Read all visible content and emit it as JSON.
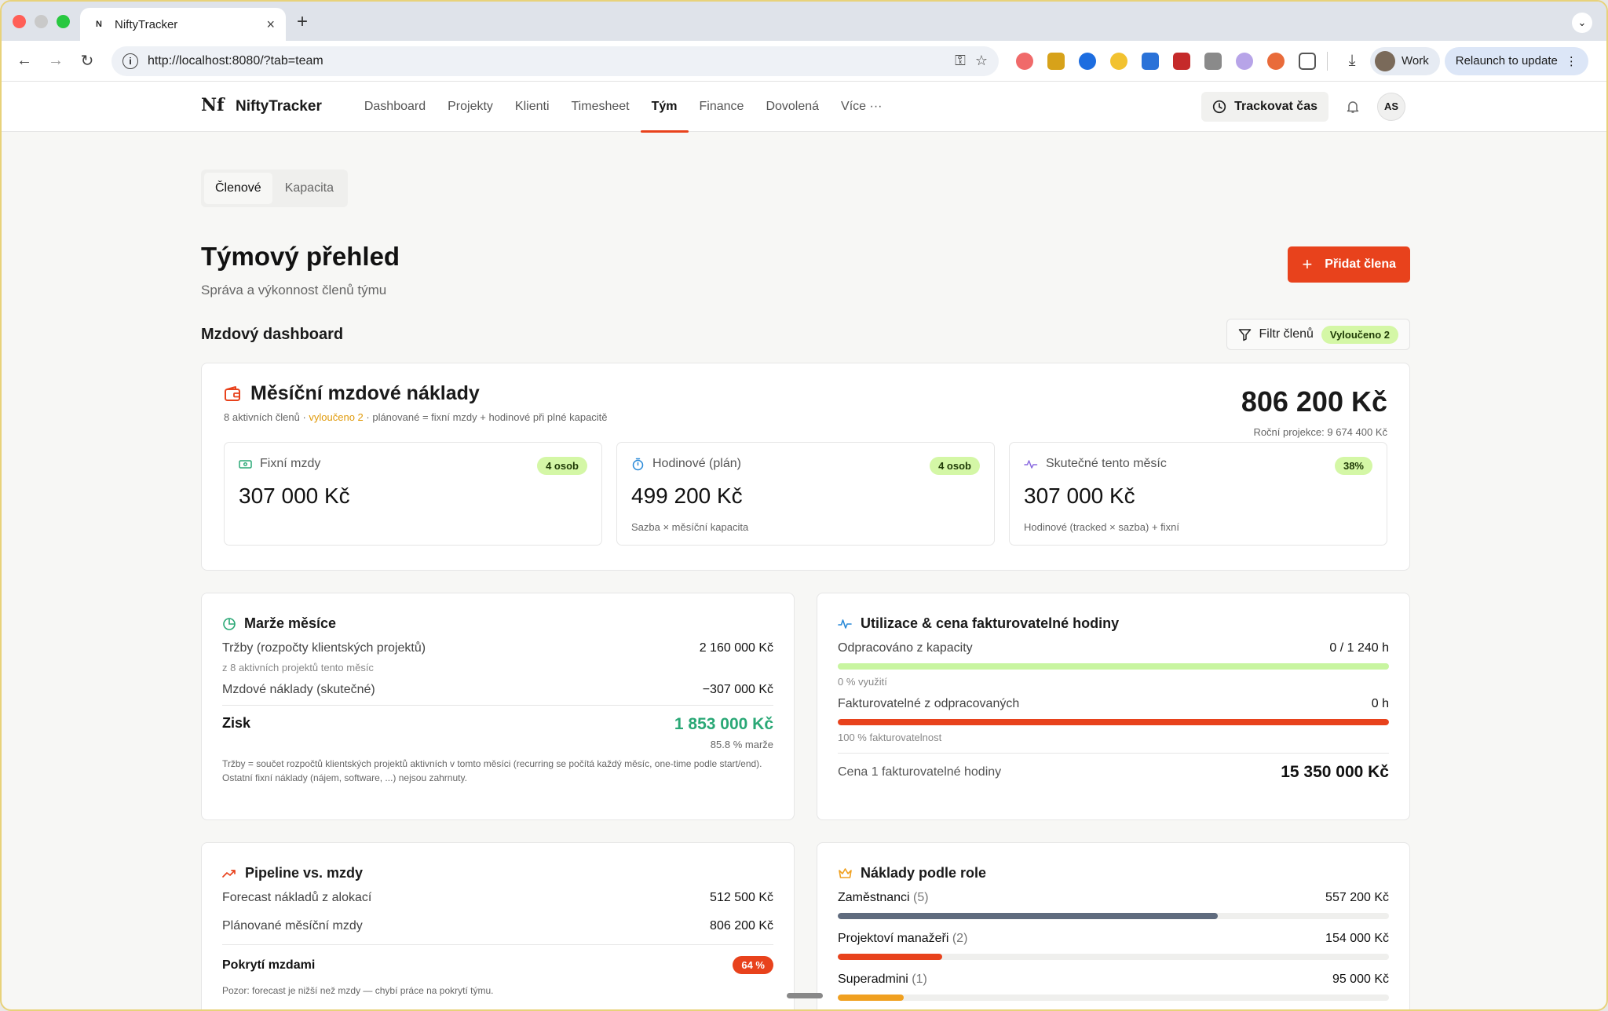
{
  "browser": {
    "tab_title": "NiftyTracker",
    "url": "http://localhost:8080/?tab=team",
    "profile_label": "Work",
    "relaunch_label": "Relaunch to update"
  },
  "app": {
    "name": "NiftyTracker",
    "nav": [
      "Dashboard",
      "Projekty",
      "Klienti",
      "Timesheet",
      "Tým",
      "Finance",
      "Dovolená",
      "Více ···"
    ],
    "active_nav": "Tým",
    "track_label": "Trackovat čas",
    "user_initials": "AS"
  },
  "subtabs": [
    "Členové",
    "Kapacita"
  ],
  "page": {
    "title": "Týmový přehled",
    "subtitle": "Správa a výkonnost členů týmu",
    "add_button": "Přidat člena"
  },
  "dashboard": {
    "title": "Mzdový dashboard",
    "filter_label": "Filtr členů",
    "filter_badge": "Vyloučeno 2"
  },
  "monthly": {
    "title": "Měsíční mzdové náklady",
    "sub_prefix": "8 aktivních členů · ",
    "sub_excluded": "vyloučeno 2",
    "sub_suffix": " · plánované = fixní mzdy + hodinové při plné kapacitě",
    "total": "806 200 Kč",
    "projection": "Roční projekce: 9 674 400 Kč",
    "stats": [
      {
        "label": "Fixní mzdy",
        "badge": "4 osob",
        "value": "307 000 Kč",
        "note": ""
      },
      {
        "label": "Hodinové (plán)",
        "badge": "4 osob",
        "value": "499 200 Kč",
        "note": "Sazba × měsíční kapacita"
      },
      {
        "label": "Skutečné tento měsíc",
        "badge": "38%",
        "value": "307 000 Kč",
        "note": "Hodinové (tracked × sazba) + fixní"
      }
    ]
  },
  "margin": {
    "title": "Marže měsíce",
    "revenue_label": "Tržby (rozpočty klientských projektů)",
    "revenue_value": "2 160 000 Kč",
    "revenue_note": "z 8 aktivních projektů tento měsíc",
    "cost_label": "Mzdové náklady (skutečné)",
    "cost_value": "−307 000 Kč",
    "profit_label": "Zisk",
    "profit_value": "1 853 000 Kč",
    "margin_pct": "85.8 % marže",
    "footnote": "Tržby = součet rozpočtů klientských projektů aktivních v tomto měsíci (recurring se počítá každý měsíc, one-time podle start/end). Ostatní fixní náklady (nájem, software, ...) nejsou zahrnuty."
  },
  "utilization": {
    "title": "Utilizace & cena fakturovatelné hodiny",
    "worked_label": "Odpracováno z kapacity",
    "worked_value": "0 / 1 240 h",
    "worked_pct": 0,
    "worked_note": "0 % využití",
    "billable_label": "Fakturovatelné z odpracovaných",
    "billable_value": "0 h",
    "billable_pct": 100,
    "billable_note": "100 % fakturovatelnost",
    "price_label": "Cena 1 fakturovatelné hodiny",
    "price_value": "15 350 000 Kč"
  },
  "pipeline": {
    "title": "Pipeline vs. mzdy",
    "forecast_label": "Forecast nákladů z alokací",
    "forecast_value": "512 500 Kč",
    "planned_label": "Plánované měsíční mzdy",
    "planned_value": "806 200 Kč",
    "coverage_label": "Pokrytí mzdami",
    "coverage_value": "64 %",
    "warning": "Pozor: forecast je nižší než mzdy — chybí práce na pokrytí týmu."
  },
  "roles": {
    "title": "Náklady podle role",
    "items": [
      {
        "name": "Zaměstnanci",
        "count": "(5)",
        "value": "557 200 Kč",
        "share": 0.69,
        "color": "#5f6b7e"
      },
      {
        "name": "Projektoví manažeři",
        "count": "(2)",
        "value": "154 000 Kč",
        "share": 0.19,
        "color": "#e8421c"
      },
      {
        "name": "Superadmini",
        "count": "(1)",
        "value": "95 000 Kč",
        "share": 0.12,
        "color": "#f0a020"
      }
    ]
  }
}
